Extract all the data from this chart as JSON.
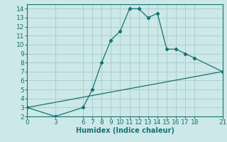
{
  "xlabel": "Humidex (Indice chaleur)",
  "background_color": "#cce8e8",
  "line_color": "#1a7070",
  "grid_color": "#aacfcf",
  "curve1_x": [
    0,
    3,
    6,
    7,
    8,
    9,
    10,
    11,
    12,
    13,
    14,
    15,
    16,
    17,
    18,
    21
  ],
  "curve1_y": [
    3,
    2,
    3,
    5,
    8,
    10.5,
    11.5,
    14,
    14,
    13,
    13.5,
    9.5,
    9.5,
    9,
    8.5,
    7
  ],
  "curve2_x": [
    0,
    21
  ],
  "curve2_y": [
    3,
    7
  ],
  "xticks": [
    0,
    3,
    6,
    7,
    8,
    9,
    10,
    11,
    12,
    13,
    14,
    15,
    16,
    17,
    18,
    21
  ],
  "yticks": [
    2,
    3,
    4,
    5,
    6,
    7,
    8,
    9,
    10,
    11,
    12,
    13,
    14
  ],
  "xlim": [
    0,
    21
  ],
  "ylim": [
    2,
    14.5
  ],
  "fontsize": 6.5,
  "label_fontsize": 7
}
